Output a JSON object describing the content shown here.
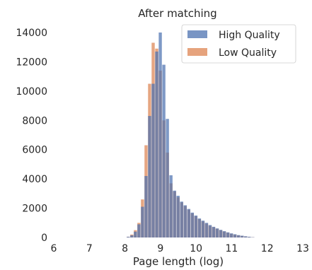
{
  "chart_data": {
    "type": "bar",
    "title": "After matching",
    "xlabel": "Page length (log)",
    "ylabel": "",
    "xlim": [
      6,
      13
    ],
    "ylim": [
      0,
      14000
    ],
    "xticks": [
      "6",
      "7",
      "8",
      "9",
      "10",
      "11",
      "12",
      "13"
    ],
    "yticks": [
      "0",
      "2000",
      "4000",
      "6000",
      "8000",
      "10000",
      "12000",
      "14000"
    ],
    "grid": false,
    "legend_position": "top-right",
    "bin_width": 0.1,
    "series": [
      {
        "name": "High Quality",
        "color": "#4c72b0",
        "x": [
          8.1,
          8.2,
          8.3,
          8.4,
          8.5,
          8.6,
          8.7,
          8.8,
          8.9,
          9.0,
          9.1,
          9.2,
          9.3,
          9.4,
          9.5,
          9.6,
          9.7,
          9.8,
          9.9,
          10.0,
          10.1,
          10.2,
          10.3,
          10.4,
          10.5,
          10.6,
          10.7,
          10.8,
          10.9,
          11.0,
          11.1,
          11.2,
          11.3,
          11.4,
          11.5,
          11.6
        ],
        "values": [
          50,
          150,
          400,
          900,
          2100,
          4200,
          8300,
          10500,
          12700,
          14000,
          11800,
          8100,
          4250,
          3200,
          2850,
          2450,
          2200,
          1950,
          1700,
          1500,
          1300,
          1150,
          1000,
          850,
          730,
          620,
          520,
          430,
          350,
          280,
          220,
          160,
          120,
          80,
          50,
          20
        ]
      },
      {
        "name": "Low Quality",
        "color": "#dd8452",
        "x": [
          8.1,
          8.2,
          8.3,
          8.4,
          8.5,
          8.6,
          8.7,
          8.8,
          8.9,
          9.0,
          9.1,
          9.2,
          9.3,
          9.4,
          9.5,
          9.6,
          9.7,
          9.8,
          9.9,
          10.0,
          10.1,
          10.2,
          10.3,
          10.4,
          10.5,
          10.6,
          10.7,
          10.8,
          10.9,
          11.0,
          11.1,
          11.2,
          11.3,
          11.4,
          11.5,
          11.6
        ],
        "values": [
          50,
          200,
          500,
          1000,
          2600,
          6300,
          10500,
          13300,
          12900,
          11400,
          8000,
          5800,
          3700,
          3150,
          2750,
          2400,
          2150,
          1900,
          1650,
          1450,
          1250,
          1100,
          950,
          800,
          700,
          600,
          500,
          410,
          330,
          260,
          200,
          150,
          110,
          70,
          40,
          20
        ]
      }
    ]
  }
}
